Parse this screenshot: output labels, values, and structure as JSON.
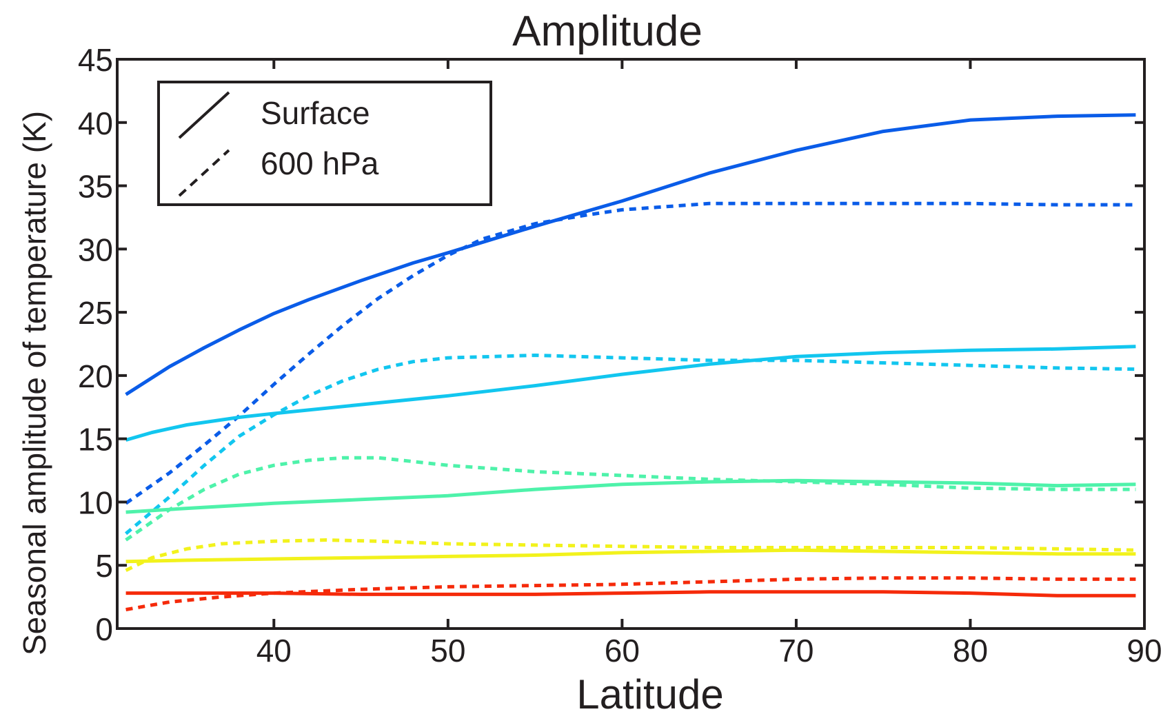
{
  "chart_data": {
    "type": "line",
    "title": "Amplitude",
    "xlabel": "Latitude",
    "ylabel": "Seasonal amplitude of temperature (K)",
    "xlim": [
      31,
      90
    ],
    "ylim": [
      0,
      45
    ],
    "xticks": [
      40,
      50,
      60,
      70,
      80,
      90
    ],
    "yticks": [
      0,
      5,
      10,
      15,
      20,
      25,
      30,
      35,
      40,
      45
    ],
    "grid": false,
    "legend": {
      "placement": "top-left",
      "entries": [
        {
          "label": "Surface",
          "style": "solid"
        },
        {
          "label": "600 hPa",
          "style": "dashed"
        }
      ]
    },
    "series": [
      {
        "color": "#0a5ce8",
        "style": "solid",
        "x": [
          31.5,
          34,
          36,
          38,
          40,
          42,
          45,
          48,
          50,
          55,
          60,
          65,
          70,
          75,
          80,
          85,
          89.5
        ],
        "y": [
          18.5,
          20.7,
          22.2,
          23.6,
          24.9,
          26.0,
          27.5,
          28.9,
          29.7,
          31.8,
          33.8,
          36.0,
          37.8,
          39.3,
          40.2,
          40.5,
          40.6
        ]
      },
      {
        "color": "#0a5ce8",
        "style": "dashed",
        "x": [
          31.5,
          34,
          36,
          38,
          40,
          42,
          44,
          46,
          48,
          50,
          52,
          55,
          58,
          60,
          62,
          65,
          70,
          75,
          80,
          85,
          89.5
        ],
        "y": [
          9.9,
          12.3,
          14.5,
          16.8,
          19.3,
          21.7,
          24.0,
          26.1,
          27.9,
          29.5,
          30.8,
          32.0,
          32.7,
          33.1,
          33.3,
          33.6,
          33.6,
          33.6,
          33.6,
          33.5,
          33.5
        ]
      },
      {
        "color": "#12c6ef",
        "style": "solid",
        "x": [
          31.5,
          33,
          35,
          38,
          40,
          45,
          50,
          55,
          60,
          65,
          70,
          75,
          80,
          85,
          89.5
        ],
        "y": [
          14.9,
          15.5,
          16.1,
          16.7,
          17.0,
          17.7,
          18.4,
          19.2,
          20.1,
          20.9,
          21.5,
          21.8,
          22.0,
          22.1,
          22.3
        ]
      },
      {
        "color": "#12c6ef",
        "style": "dashed",
        "x": [
          31.5,
          34,
          36,
          38,
          40,
          42,
          44,
          46,
          48,
          50,
          55,
          60,
          65,
          70,
          75,
          80,
          85,
          89.5
        ],
        "y": [
          7.5,
          10.4,
          12.9,
          15.2,
          16.9,
          18.4,
          19.6,
          20.5,
          21.1,
          21.4,
          21.6,
          21.4,
          21.2,
          21.2,
          21.0,
          20.8,
          20.6,
          20.5
        ]
      },
      {
        "color": "#4ef2aa",
        "style": "solid",
        "x": [
          31.5,
          35,
          40,
          45,
          50,
          55,
          60,
          65,
          70,
          75,
          80,
          85,
          89.5
        ],
        "y": [
          9.2,
          9.5,
          9.9,
          10.2,
          10.5,
          11.0,
          11.4,
          11.6,
          11.7,
          11.6,
          11.5,
          11.3,
          11.4
        ]
      },
      {
        "color": "#4ef2aa",
        "style": "dashed",
        "x": [
          31.5,
          34,
          36,
          38,
          40,
          42,
          44,
          46,
          48,
          50,
          55,
          60,
          65,
          70,
          75,
          80,
          85,
          89.5
        ],
        "y": [
          7.0,
          9.4,
          11.0,
          12.2,
          12.9,
          13.3,
          13.5,
          13.5,
          13.2,
          12.9,
          12.4,
          12.1,
          11.8,
          11.6,
          11.4,
          11.1,
          11.0,
          11.0
        ]
      },
      {
        "color": "#f2f21c",
        "style": "solid",
        "x": [
          31.5,
          35,
          40,
          45,
          50,
          55,
          60,
          65,
          70,
          75,
          80,
          85,
          89.5
        ],
        "y": [
          5.3,
          5.4,
          5.5,
          5.6,
          5.7,
          5.8,
          6.0,
          6.1,
          6.2,
          6.1,
          6.0,
          5.9,
          5.9
        ]
      },
      {
        "color": "#f2f21c",
        "style": "dashed",
        "x": [
          31.5,
          33,
          35,
          37,
          40,
          43,
          46,
          50,
          55,
          60,
          65,
          70,
          75,
          80,
          85,
          89.5
        ],
        "y": [
          4.6,
          5.6,
          6.3,
          6.7,
          6.9,
          7.0,
          6.9,
          6.7,
          6.6,
          6.5,
          6.4,
          6.4,
          6.4,
          6.4,
          6.3,
          6.2
        ]
      },
      {
        "color": "#f52a0a",
        "style": "solid",
        "x": [
          31.5,
          35,
          40,
          45,
          50,
          55,
          60,
          65,
          70,
          75,
          80,
          85,
          89.5
        ],
        "y": [
          2.8,
          2.8,
          2.8,
          2.7,
          2.7,
          2.7,
          2.8,
          2.9,
          2.9,
          2.9,
          2.8,
          2.6,
          2.6
        ]
      },
      {
        "color": "#f52a0a",
        "style": "dashed",
        "x": [
          31.5,
          34,
          37,
          40,
          45,
          50,
          55,
          60,
          65,
          70,
          75,
          80,
          85,
          89.5
        ],
        "y": [
          1.5,
          2.1,
          2.5,
          2.8,
          3.1,
          3.3,
          3.4,
          3.5,
          3.7,
          3.9,
          4.0,
          4.0,
          3.9,
          3.9
        ]
      }
    ]
  }
}
